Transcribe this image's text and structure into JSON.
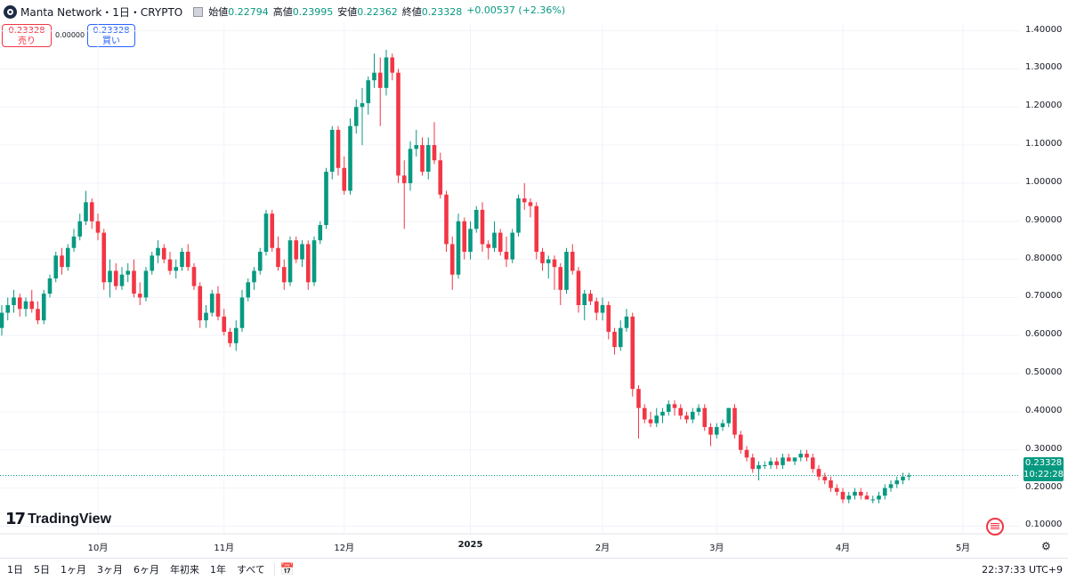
{
  "header": {
    "symbol_title": "Manta Network・1日・CRYPTO",
    "ohlc": [
      {
        "key": "始値",
        "value": "0.22794"
      },
      {
        "key": "高値",
        "value": "0.23995"
      },
      {
        "key": "安値",
        "value": "0.22362"
      },
      {
        "key": "終値",
        "value": "0.23328"
      }
    ],
    "change": "+0.00537 (+2.36%)"
  },
  "trade": {
    "sell_price": "0.23328",
    "sell_label": "売り",
    "spread": "0.00000",
    "buy_price": "0.23328",
    "buy_label": "買い"
  },
  "last_price": {
    "price": "0.23328",
    "countdown": "10:22:28"
  },
  "brand": "TradingView",
  "bottom_bar": {
    "ranges": [
      "1日",
      "5日",
      "1ヶ月",
      "3ヶ月",
      "6ヶ月",
      "年初来",
      "1年",
      "すべて"
    ],
    "clock": "22:37:33 UTC+9"
  },
  "colors": {
    "up": "#089981",
    "down": "#f23645",
    "grid": "#f0f3fa"
  },
  "chart_data": {
    "type": "candlestick",
    "title": "Manta Network・1日・CRYPTO",
    "ylim": [
      0.08,
      1.42
    ],
    "y_ticks": [
      "0.10000",
      "0.20000",
      "0.30000",
      "0.40000",
      "0.50000",
      "0.60000",
      "0.70000",
      "0.80000",
      "0.90000",
      "1.00000",
      "1.10000",
      "1.20000",
      "1.30000",
      "1.40000"
    ],
    "x_ticks": [
      {
        "label": "10月",
        "index": 16
      },
      {
        "label": "11月",
        "index": 37
      },
      {
        "label": "12月",
        "index": 57
      },
      {
        "label": "2025",
        "index": 78
      },
      {
        "label": "2月",
        "index": 100
      },
      {
        "label": "3月",
        "index": 119
      },
      {
        "label": "4月",
        "index": 140
      },
      {
        "label": "5月",
        "index": 160
      }
    ],
    "grid": true,
    "candles": [
      [
        0.62,
        0.68,
        0.6,
        0.66
      ],
      [
        0.66,
        0.7,
        0.64,
        0.68
      ],
      [
        0.68,
        0.72,
        0.66,
        0.7
      ],
      [
        0.7,
        0.71,
        0.65,
        0.67
      ],
      [
        0.67,
        0.7,
        0.65,
        0.69
      ],
      [
        0.69,
        0.72,
        0.66,
        0.67
      ],
      [
        0.67,
        0.69,
        0.63,
        0.64
      ],
      [
        0.64,
        0.72,
        0.63,
        0.71
      ],
      [
        0.71,
        0.76,
        0.7,
        0.75
      ],
      [
        0.75,
        0.82,
        0.74,
        0.81
      ],
      [
        0.81,
        0.83,
        0.76,
        0.78
      ],
      [
        0.78,
        0.84,
        0.77,
        0.83
      ],
      [
        0.83,
        0.88,
        0.82,
        0.86
      ],
      [
        0.86,
        0.92,
        0.85,
        0.9
      ],
      [
        0.9,
        0.98,
        0.89,
        0.95
      ],
      [
        0.95,
        0.96,
        0.88,
        0.9
      ],
      [
        0.9,
        0.92,
        0.85,
        0.87
      ],
      [
        0.87,
        0.88,
        0.72,
        0.74
      ],
      [
        0.74,
        0.8,
        0.7,
        0.77
      ],
      [
        0.77,
        0.79,
        0.72,
        0.73
      ],
      [
        0.73,
        0.78,
        0.72,
        0.76
      ],
      [
        0.76,
        0.79,
        0.74,
        0.77
      ],
      [
        0.77,
        0.8,
        0.7,
        0.71
      ],
      [
        0.71,
        0.74,
        0.68,
        0.7
      ],
      [
        0.7,
        0.78,
        0.69,
        0.77
      ],
      [
        0.77,
        0.82,
        0.76,
        0.81
      ],
      [
        0.81,
        0.85,
        0.79,
        0.83
      ],
      [
        0.83,
        0.84,
        0.79,
        0.8
      ],
      [
        0.8,
        0.82,
        0.76,
        0.77
      ],
      [
        0.77,
        0.8,
        0.75,
        0.78
      ],
      [
        0.78,
        0.83,
        0.77,
        0.82
      ],
      [
        0.82,
        0.84,
        0.77,
        0.78
      ],
      [
        0.78,
        0.79,
        0.72,
        0.73
      ],
      [
        0.73,
        0.74,
        0.62,
        0.64
      ],
      [
        0.64,
        0.68,
        0.62,
        0.66
      ],
      [
        0.66,
        0.72,
        0.65,
        0.71
      ],
      [
        0.71,
        0.73,
        0.64,
        0.65
      ],
      [
        0.65,
        0.67,
        0.6,
        0.61
      ],
      [
        0.61,
        0.62,
        0.57,
        0.58
      ],
      [
        0.58,
        0.64,
        0.56,
        0.62
      ],
      [
        0.62,
        0.72,
        0.61,
        0.7
      ],
      [
        0.7,
        0.75,
        0.69,
        0.74
      ],
      [
        0.74,
        0.78,
        0.72,
        0.77
      ],
      [
        0.77,
        0.83,
        0.76,
        0.82
      ],
      [
        0.82,
        0.93,
        0.81,
        0.92
      ],
      [
        0.92,
        0.93,
        0.82,
        0.83
      ],
      [
        0.83,
        0.86,
        0.77,
        0.78
      ],
      [
        0.78,
        0.8,
        0.72,
        0.74
      ],
      [
        0.74,
        0.86,
        0.73,
        0.85
      ],
      [
        0.85,
        0.86,
        0.79,
        0.8
      ],
      [
        0.8,
        0.85,
        0.78,
        0.84
      ],
      [
        0.84,
        0.85,
        0.72,
        0.74
      ],
      [
        0.74,
        0.86,
        0.73,
        0.85
      ],
      [
        0.85,
        0.9,
        0.84,
        0.89
      ],
      [
        0.89,
        1.04,
        0.88,
        1.03
      ],
      [
        1.03,
        1.15,
        1.01,
        1.14
      ],
      [
        1.14,
        1.15,
        1.02,
        1.04
      ],
      [
        1.04,
        1.07,
        0.97,
        0.98
      ],
      [
        0.98,
        1.17,
        0.97,
        1.15
      ],
      [
        1.15,
        1.22,
        1.13,
        1.2
      ],
      [
        1.2,
        1.25,
        1.1,
        1.21
      ],
      [
        1.21,
        1.28,
        1.18,
        1.27
      ],
      [
        1.27,
        1.34,
        1.25,
        1.29
      ],
      [
        1.29,
        1.33,
        1.15,
        1.25
      ],
      [
        1.25,
        1.35,
        1.23,
        1.33
      ],
      [
        1.33,
        1.34,
        1.27,
        1.29
      ],
      [
        1.29,
        1.3,
        1.0,
        1.02
      ],
      [
        1.02,
        1.06,
        0.88,
        1.0
      ],
      [
        1.0,
        1.11,
        0.98,
        1.09
      ],
      [
        1.09,
        1.14,
        1.07,
        1.1
      ],
      [
        1.1,
        1.12,
        1.02,
        1.03
      ],
      [
        1.03,
        1.12,
        1.01,
        1.1
      ],
      [
        1.1,
        1.16,
        1.05,
        1.06
      ],
      [
        1.06,
        1.08,
        0.96,
        0.97
      ],
      [
        0.97,
        0.98,
        0.82,
        0.84
      ],
      [
        0.84,
        0.86,
        0.72,
        0.76
      ],
      [
        0.76,
        0.92,
        0.75,
        0.9
      ],
      [
        0.9,
        0.91,
        0.8,
        0.82
      ],
      [
        0.82,
        0.9,
        0.8,
        0.88
      ],
      [
        0.88,
        0.94,
        0.87,
        0.93
      ],
      [
        0.93,
        0.95,
        0.82,
        0.84
      ],
      [
        0.84,
        0.85,
        0.8,
        0.83
      ],
      [
        0.83,
        0.9,
        0.82,
        0.87
      ],
      [
        0.87,
        0.88,
        0.81,
        0.82
      ],
      [
        0.82,
        0.86,
        0.78,
        0.8
      ],
      [
        0.8,
        0.88,
        0.79,
        0.87
      ],
      [
        0.87,
        0.97,
        0.86,
        0.96
      ],
      [
        0.96,
        1.0,
        0.93,
        0.95
      ],
      [
        0.95,
        0.96,
        0.91,
        0.94
      ],
      [
        0.94,
        0.95,
        0.8,
        0.82
      ],
      [
        0.82,
        0.83,
        0.77,
        0.79
      ],
      [
        0.79,
        0.81,
        0.75,
        0.8
      ],
      [
        0.8,
        0.81,
        0.72,
        0.78
      ],
      [
        0.78,
        0.79,
        0.68,
        0.72
      ],
      [
        0.72,
        0.83,
        0.71,
        0.82
      ],
      [
        0.82,
        0.84,
        0.76,
        0.77
      ],
      [
        0.77,
        0.78,
        0.66,
        0.68
      ],
      [
        0.68,
        0.72,
        0.64,
        0.71
      ],
      [
        0.71,
        0.72,
        0.68,
        0.69
      ],
      [
        0.69,
        0.7,
        0.64,
        0.66
      ],
      [
        0.66,
        0.7,
        0.64,
        0.68
      ],
      [
        0.68,
        0.69,
        0.59,
        0.61
      ],
      [
        0.61,
        0.62,
        0.55,
        0.57
      ],
      [
        0.57,
        0.64,
        0.56,
        0.62
      ],
      [
        0.62,
        0.67,
        0.61,
        0.65
      ],
      [
        0.65,
        0.66,
        0.44,
        0.46
      ],
      [
        0.46,
        0.47,
        0.33,
        0.41
      ],
      [
        0.41,
        0.42,
        0.37,
        0.38
      ],
      [
        0.38,
        0.4,
        0.36,
        0.37
      ],
      [
        0.37,
        0.41,
        0.36,
        0.39
      ],
      [
        0.39,
        0.41,
        0.37,
        0.4
      ],
      [
        0.4,
        0.43,
        0.39,
        0.42
      ],
      [
        0.42,
        0.43,
        0.39,
        0.41
      ],
      [
        0.41,
        0.42,
        0.38,
        0.39
      ],
      [
        0.39,
        0.4,
        0.37,
        0.38
      ],
      [
        0.38,
        0.41,
        0.37,
        0.4
      ],
      [
        0.4,
        0.42,
        0.39,
        0.41
      ],
      [
        0.41,
        0.42,
        0.35,
        0.36
      ],
      [
        0.36,
        0.37,
        0.31,
        0.34
      ],
      [
        0.34,
        0.37,
        0.33,
        0.36
      ],
      [
        0.36,
        0.38,
        0.35,
        0.37
      ],
      [
        0.37,
        0.41,
        0.36,
        0.41
      ],
      [
        0.41,
        0.42,
        0.33,
        0.34
      ],
      [
        0.34,
        0.35,
        0.29,
        0.3
      ],
      [
        0.3,
        0.31,
        0.27,
        0.28
      ],
      [
        0.28,
        0.29,
        0.24,
        0.25
      ],
      [
        0.25,
        0.27,
        0.22,
        0.26
      ],
      [
        0.26,
        0.27,
        0.25,
        0.26
      ],
      [
        0.26,
        0.28,
        0.25,
        0.27
      ],
      [
        0.27,
        0.28,
        0.25,
        0.26
      ],
      [
        0.26,
        0.29,
        0.25,
        0.28
      ],
      [
        0.28,
        0.29,
        0.27,
        0.27
      ],
      [
        0.27,
        0.28,
        0.26,
        0.28
      ],
      [
        0.28,
        0.3,
        0.27,
        0.29
      ],
      [
        0.29,
        0.3,
        0.27,
        0.28
      ],
      [
        0.28,
        0.29,
        0.24,
        0.25
      ],
      [
        0.25,
        0.26,
        0.22,
        0.23
      ],
      [
        0.23,
        0.24,
        0.21,
        0.22
      ],
      [
        0.22,
        0.23,
        0.19,
        0.2
      ],
      [
        0.2,
        0.21,
        0.18,
        0.19
      ],
      [
        0.19,
        0.2,
        0.16,
        0.17
      ],
      [
        0.17,
        0.19,
        0.16,
        0.18
      ],
      [
        0.18,
        0.2,
        0.17,
        0.19
      ],
      [
        0.19,
        0.2,
        0.17,
        0.18
      ],
      [
        0.18,
        0.19,
        0.17,
        0.17
      ],
      [
        0.17,
        0.18,
        0.16,
        0.17
      ],
      [
        0.17,
        0.19,
        0.16,
        0.18
      ],
      [
        0.18,
        0.21,
        0.17,
        0.2
      ],
      [
        0.2,
        0.22,
        0.19,
        0.21
      ],
      [
        0.21,
        0.23,
        0.2,
        0.22
      ],
      [
        0.22,
        0.24,
        0.21,
        0.23
      ],
      [
        0.23,
        0.24,
        0.22,
        0.233
      ]
    ]
  }
}
